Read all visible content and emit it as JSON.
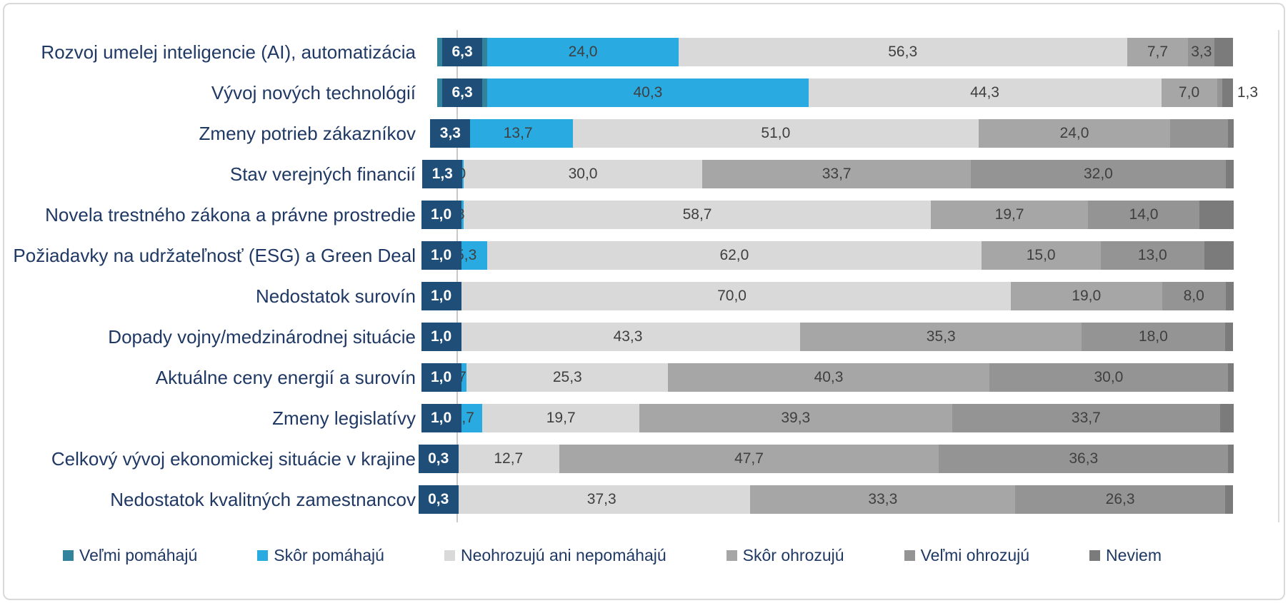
{
  "chart_data": {
    "type": "bar",
    "orientation": "horizontal",
    "stacked": true,
    "unit": "%",
    "xlim": [
      0,
      100
    ],
    "grid": false,
    "legend_position": "bottom",
    "decimal_separator": ",",
    "colors": {
      "chip_background": "#1f4e79",
      "axis_line": "#c9c9c9",
      "category_text": "#1f3864",
      "bar_label_text": "#3f3f3f"
    },
    "categories": [
      "Rozvoj umelej inteligencie (AI), automatizácia",
      "Vývoj nových technológií",
      "Zmeny potrieb zákazníkov",
      "Stav verejných financií",
      "Novela trestného zákona a právne prostredie",
      "Požiadavky na udržateľnosť (ESG) a Green Deal",
      "Nedostatok surovín",
      "Dopady vojny/medzinárodnej situácie",
      "Aktuálne ceny energií a surovín",
      "Zmeny legislatívy",
      "Celkový vývoj ekonomickej situácie v krajine",
      "Nedostatok kvalitných zamestnancov"
    ],
    "series": [
      {
        "name": "Veľmi pomáhajú",
        "key": "velmi-pomahaju",
        "color": "#31849b",
        "values": [
          6.3,
          6.3,
          3.3,
          1.3,
          1.0,
          1.0,
          1.0,
          1.0,
          1.0,
          1.0,
          0.3,
          0.3
        ],
        "labels": [
          "6,3",
          "6,3",
          "3,3",
          "1,3",
          "1,0",
          "1,0",
          "1,0",
          "1,0",
          "1,0",
          "1,0",
          "0,3",
          "0,3"
        ],
        "label_modes": [
          "chip",
          "chip",
          "chip",
          "chip",
          "chip",
          "chip",
          "chip",
          "chip",
          "chip",
          "chip",
          "chip",
          "chip"
        ]
      },
      {
        "name": "Skôr pomáhajú",
        "key": "skor-pomahaju",
        "color": "#29abe2",
        "values": [
          24.0,
          40.3,
          13.7,
          2.0,
          2.3,
          5.3,
          1.0,
          1.3,
          2.7,
          4.7,
          2.3,
          1.7
        ],
        "labels": [
          "24,0",
          "40,3",
          "13,7",
          "2,0",
          "2,3",
          "5,3",
          "1,0",
          "1,3",
          "2,7",
          "4,7",
          "2,3",
          "1,7"
        ],
        "label_modes": [
          "in",
          "in",
          "in",
          "in",
          "in",
          "in",
          "in",
          "in",
          "in",
          "in",
          "in",
          "in"
        ]
      },
      {
        "name": "Neohrozujú ani nepomáhajú",
        "key": "neohrozuju-ani-nepomahaju",
        "color": "#d9d9d9",
        "values": [
          56.3,
          44.3,
          51.0,
          30.0,
          58.7,
          62.0,
          70.0,
          43.3,
          25.3,
          19.7,
          12.7,
          37.3
        ],
        "labels": [
          "56,3",
          "44,3",
          "51,0",
          "30,0",
          "58,7",
          "62,0",
          "70,0",
          "43,3",
          "25,3",
          "19,7",
          "12,7",
          "37,3"
        ],
        "label_modes": [
          "in",
          "in",
          "in",
          "in",
          "in",
          "in",
          "in",
          "in",
          "in",
          "in",
          "in",
          "in"
        ]
      },
      {
        "name": "Skôr ohrozujú",
        "key": "skor-ohrozuju",
        "color": "#a6a6a6",
        "values": [
          7.7,
          7.0,
          24.0,
          33.7,
          19.7,
          15.0,
          19.0,
          35.3,
          40.3,
          39.3,
          47.7,
          33.3
        ],
        "labels": [
          "7,7",
          "7,0",
          "24,0",
          "33,7",
          "19,7",
          "15,0",
          "19,0",
          "35,3",
          "40,3",
          "39,3",
          "47,7",
          "33,3"
        ],
        "label_modes": [
          "in",
          "in",
          "in",
          "in",
          "in",
          "in",
          "in",
          "in",
          "in",
          "in",
          "in",
          "in"
        ]
      },
      {
        "name": "Veľmi ohrozujú",
        "key": "velmi-ohrozuju",
        "color": "#949494",
        "values": [
          3.3,
          0.7,
          7.3,
          32.0,
          14.0,
          13.0,
          8.0,
          18.0,
          30.0,
          33.7,
          36.3,
          26.3
        ],
        "labels": [
          "3,3",
          "",
          "",
          "32,0",
          "14,0",
          "13,0",
          "8,0",
          "18,0",
          "30,0",
          "33,7",
          "36,3",
          "26,3"
        ],
        "label_modes": [
          "in",
          "none",
          "none",
          "in",
          "in",
          "in",
          "in",
          "in",
          "in",
          "in",
          "in",
          "in"
        ]
      },
      {
        "name": "Neviem",
        "key": "neviem",
        "color": "#7b7b7b",
        "values": [
          2.3,
          1.3,
          0.7,
          1.0,
          4.3,
          3.7,
          1.0,
          1.0,
          0.7,
          1.7,
          0.7,
          1.0
        ],
        "labels": [
          "",
          "1,3",
          "",
          "",
          "",
          "",
          "",
          "",
          "",
          "",
          "",
          ""
        ],
        "label_modes": [
          "none",
          "out",
          "none",
          "none",
          "none",
          "none",
          "none",
          "none",
          "none",
          "none",
          "none",
          "none"
        ]
      }
    ]
  }
}
